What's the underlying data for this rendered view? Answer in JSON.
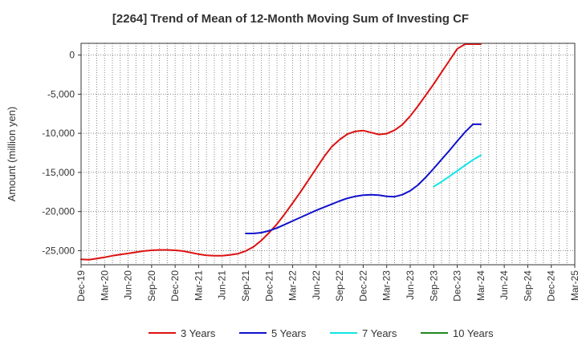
{
  "chart_data": {
    "type": "line",
    "title": "[2264]  Trend of Mean of 12-Month Moving Sum of Investing CF",
    "xlabel": "",
    "ylabel": "Amount (million yen)",
    "ylim": [
      -26800,
      1500
    ],
    "yticks": [
      0,
      -5000,
      -10000,
      -15000,
      -20000,
      -25000
    ],
    "ytick_labels": [
      "0",
      "-5,000",
      "-10,000",
      "-15,000",
      "-20,000",
      "-25,000"
    ],
    "xlim": [
      0,
      63
    ],
    "xticks": [
      0,
      3,
      6,
      9,
      12,
      15,
      18,
      21,
      24,
      27,
      30,
      33,
      36,
      39,
      42,
      45,
      48,
      51,
      54,
      57,
      60,
      63
    ],
    "xtick_labels": [
      "Dec-19",
      "Mar-20",
      "Jun-20",
      "Sep-20",
      "Dec-20",
      "Mar-21",
      "Jun-21",
      "Sep-21",
      "Dec-21",
      "Mar-22",
      "Jun-22",
      "Sep-22",
      "Dec-22",
      "Mar-23",
      "Jun-23",
      "Sep-23",
      "Dec-23",
      "Mar-24",
      "Jun-24",
      "Sep-24",
      "Dec-24",
      "Mar-25"
    ],
    "grid": true,
    "legend_position": "bottom",
    "series": [
      {
        "name": "3 Years",
        "color": "#dd1111",
        "x": [
          0,
          1,
          2,
          3,
          4,
          5,
          6,
          7,
          8,
          9,
          10,
          11,
          12,
          13,
          14,
          15,
          16,
          17,
          18,
          19,
          20,
          21,
          22,
          23,
          24,
          25,
          26,
          27,
          28,
          29,
          30,
          31,
          32,
          33,
          34,
          35,
          36,
          37,
          38,
          39,
          40,
          41,
          42,
          43,
          44,
          45,
          46,
          47,
          48,
          49,
          50,
          51
        ],
        "values": [
          -26100,
          -26150,
          -26000,
          -25850,
          -25650,
          -25500,
          -25350,
          -25200,
          -25050,
          -24950,
          -24900,
          -24900,
          -24950,
          -25050,
          -25250,
          -25450,
          -25600,
          -25650,
          -25650,
          -25550,
          -25400,
          -25050,
          -24500,
          -23700,
          -22700,
          -21600,
          -20300,
          -18900,
          -17500,
          -16000,
          -14500,
          -13000,
          -11700,
          -10800,
          -10100,
          -9750,
          -9650,
          -9900,
          -10150,
          -10050,
          -9600,
          -8900,
          -7800,
          -6500,
          -5100,
          -3700,
          -2200,
          -700,
          800,
          1400,
          1400,
          1400
        ]
      },
      {
        "name": "5 Years",
        "color": "#1111cc",
        "x": [
          21,
          22,
          23,
          24,
          25,
          26,
          27,
          28,
          29,
          30,
          31,
          32,
          33,
          34,
          35,
          36,
          37,
          38,
          39,
          40,
          41,
          42,
          43,
          44,
          45,
          46,
          47,
          48,
          49,
          50,
          51
        ],
        "values": [
          -22800,
          -22800,
          -22700,
          -22450,
          -22100,
          -21650,
          -21200,
          -20750,
          -20300,
          -19850,
          -19450,
          -19050,
          -18650,
          -18300,
          -18050,
          -17900,
          -17850,
          -17900,
          -18050,
          -18100,
          -17850,
          -17350,
          -16600,
          -15600,
          -14500,
          -13350,
          -12200,
          -11000,
          -9850,
          -8850,
          -8850
        ]
      },
      {
        "name": "7 Years",
        "color": "#11e6e6",
        "x": [
          45,
          46,
          47,
          48,
          49,
          50,
          51
        ],
        "values": [
          -16800,
          -16200,
          -15500,
          -14800,
          -14100,
          -13400,
          -12800
        ]
      },
      {
        "name": "10 Years",
        "color": "#228822",
        "x": [],
        "values": []
      }
    ]
  }
}
